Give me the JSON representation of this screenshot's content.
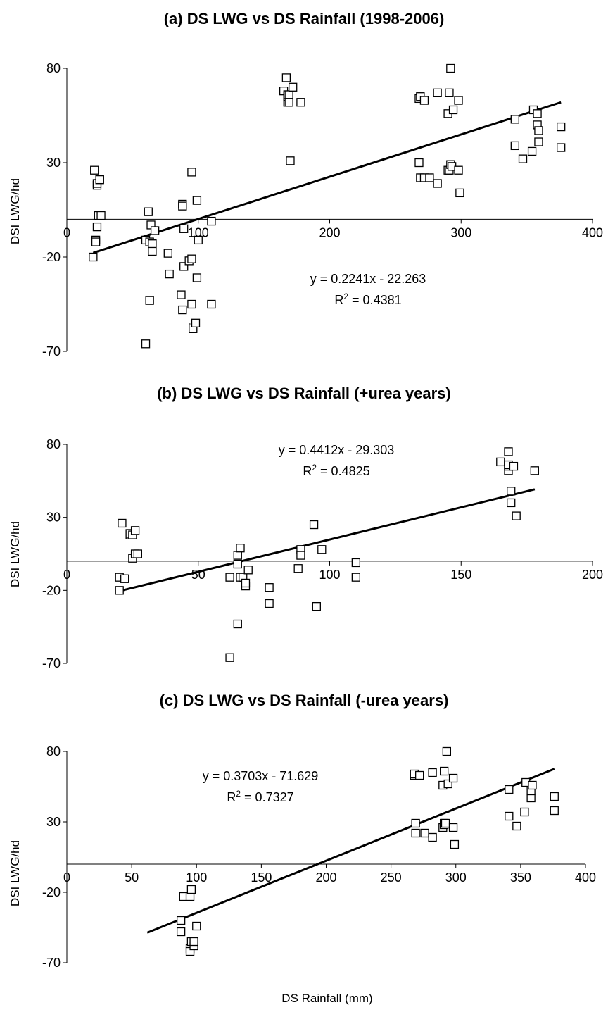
{
  "figure": {
    "xlabel": "DS Rainfall (mm)"
  },
  "chart_data": [
    {
      "type": "scatter",
      "title": "(a) DS LWG vs DS Rainfall (1998-2006)",
      "xlabel": "",
      "ylabel": "DSI LWG/hd",
      "xlim": [
        0,
        400
      ],
      "ylim": [
        -70,
        80
      ],
      "xticks": [
        0,
        100,
        200,
        300,
        400
      ],
      "yticks": [
        -70,
        -20,
        30,
        80
      ],
      "equation": "y = 0.2241x - 22.263",
      "r2_prefix": "R",
      "r2_sup": "2",
      "r2_suffix": " = 0.4381",
      "trendline": {
        "slope": 0.2241,
        "intercept": -22.263,
        "x_range": [
          20,
          376
        ]
      },
      "x": [
        20,
        21,
        22,
        22,
        23,
        23,
        23,
        24,
        25,
        25,
        26,
        60,
        60,
        62,
        63,
        63,
        64,
        65,
        65,
        65,
        67,
        77,
        78,
        87,
        88,
        88,
        88,
        89,
        89,
        93,
        95,
        95,
        95,
        96,
        96,
        98,
        99,
        99,
        100,
        110,
        110,
        165,
        167,
        168,
        168,
        168,
        169,
        169,
        169,
        170,
        172,
        178,
        268,
        268,
        269,
        269,
        272,
        272,
        276,
        282,
        282,
        290,
        290,
        291,
        291,
        292,
        292,
        293,
        294,
        298,
        298,
        299,
        341,
        341,
        347,
        354,
        355,
        358,
        358,
        359,
        359,
        376,
        376
      ],
      "y": [
        -20,
        26,
        -11,
        -12,
        -4,
        18,
        19,
        2,
        21,
        21,
        2,
        -66,
        -11,
        4,
        -43,
        -12,
        -3,
        -13,
        -13,
        -17,
        -6,
        -18,
        -29,
        -40,
        -48,
        8,
        7,
        -5,
        -25,
        -22,
        25,
        -45,
        -21,
        -57,
        -58,
        -55,
        10,
        -31,
        -11,
        -1,
        -45,
        68,
        75,
        62,
        65,
        66,
        63,
        66,
        62,
        31,
        70,
        62,
        30,
        64,
        65,
        22,
        63,
        22,
        22,
        19,
        67,
        26,
        56,
        67,
        26,
        29,
        80,
        28,
        58,
        26,
        63,
        14,
        39,
        53,
        32,
        36,
        58,
        56,
        50,
        41,
        47,
        38,
        49
      ]
    },
    {
      "type": "scatter",
      "title": "(b) DS LWG vs DS Rainfall (+urea years)",
      "xlabel": "",
      "ylabel": "DSI LWG/hd",
      "xlim": [
        0,
        200
      ],
      "ylim": [
        -70,
        80
      ],
      "xticks": [
        0,
        50,
        100,
        150,
        200
      ],
      "yticks": [
        -70,
        -20,
        30,
        80
      ],
      "equation": "y = 0.4412x - 29.303",
      "r2_prefix": "R",
      "r2_sup": "2",
      "r2_suffix": " = 0.4825",
      "trendline": {
        "slope": 0.4412,
        "intercept": -29.303,
        "x_range": [
          20,
          178
        ]
      },
      "x": [
        20,
        20,
        21,
        22,
        24,
        24,
        25,
        25,
        26,
        26,
        27,
        62,
        62,
        65,
        65,
        65,
        66,
        66,
        67,
        68,
        68,
        69,
        77,
        77,
        88,
        89,
        89,
        94,
        95,
        97,
        110,
        110,
        165,
        168,
        168,
        168,
        168,
        169,
        169,
        170,
        171,
        178
      ],
      "y": [
        -20,
        -11,
        26,
        -12,
        18,
        19,
        18,
        2,
        21,
        5,
        5,
        -66,
        -11,
        4,
        -43,
        -2,
        -11,
        9,
        -11,
        -17,
        -15,
        -6,
        -18,
        -29,
        -5,
        8,
        4,
        25,
        -31,
        8,
        -1,
        -11,
        68,
        75,
        62,
        65,
        66,
        48,
        40,
        65,
        31,
        62
      ]
    },
    {
      "type": "scatter",
      "title": "(c) DS LWG vs DS Rainfall (-urea years)",
      "xlabel": "",
      "ylabel": "DSI LWG/hd",
      "xlim": [
        0,
        400
      ],
      "ylim": [
        -70,
        80
      ],
      "xticks": [
        0,
        50,
        100,
        150,
        200,
        250,
        300,
        350,
        400
      ],
      "yticks": [
        -70,
        -20,
        30,
        80
      ],
      "equation": "y = 0.3703x - 71.629",
      "r2_prefix": "R",
      "r2_sup": "2",
      "r2_suffix": " = 0.7327",
      "trendline": {
        "slope": 0.3703,
        "intercept": -71.629,
        "x_range": [
          62,
          376
        ]
      },
      "x": [
        88,
        88,
        90,
        95,
        95,
        95,
        96,
        96,
        98,
        98,
        100,
        268,
        268,
        269,
        269,
        272,
        276,
        282,
        282,
        290,
        290,
        291,
        291,
        291,
        292,
        293,
        294,
        298,
        298,
        299,
        341,
        341,
        347,
        353,
        354,
        358,
        358,
        359,
        376,
        376
      ],
      "y": [
        -40,
        -48,
        -23,
        -60,
        -62,
        -23,
        -18,
        -55,
        -58,
        -55,
        -44,
        63,
        64,
        29,
        22,
        63,
        22,
        19,
        65,
        26,
        56,
        29,
        28,
        66,
        29,
        80,
        57,
        26,
        61,
        14,
        34,
        53,
        27,
        37,
        58,
        47,
        52,
        56,
        48,
        38
      ]
    }
  ]
}
